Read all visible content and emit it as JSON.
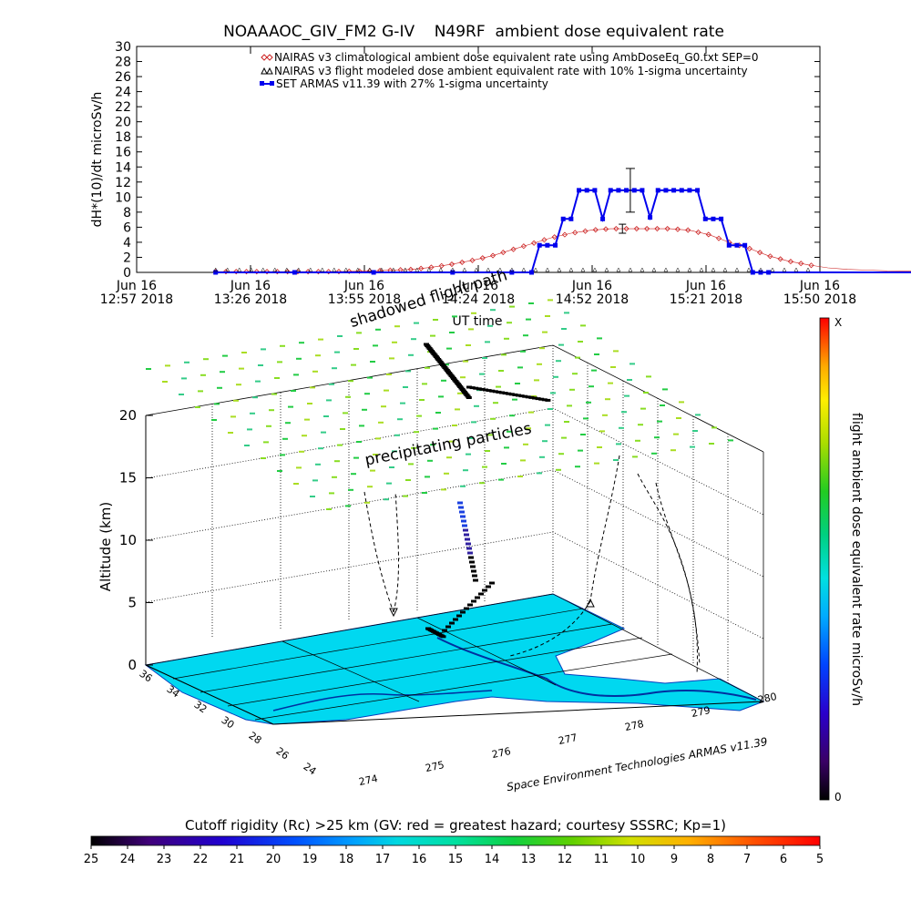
{
  "header": {
    "title": "NOAAAOC_GIV_FM2 G-IV    N49RF  ambient dose equivalent rate"
  },
  "chart_data": [
    {
      "type": "line",
      "title": "NOAAAOC_GIV_FM2 G-IV    N49RF  ambient dose equivalent rate",
      "xlabel": "UT time",
      "ylabel": "dH*(10)/dt microSv/h",
      "ylim": [
        0,
        30
      ],
      "yticks": [
        "0",
        "2",
        "4",
        "6",
        "8",
        "10",
        "12",
        "14",
        "16",
        "18",
        "20",
        "22",
        "24",
        "26",
        "28",
        "30"
      ],
      "xticks": [
        {
          "line1": "Jun 16",
          "line2": "12:57 2018"
        },
        {
          "line1": "Jun 16",
          "line2": "13:26 2018"
        },
        {
          "line1": "Jun 16",
          "line2": "13:55 2018"
        },
        {
          "line1": "Jun 16",
          "line2": "14:24 2018"
        },
        {
          "line1": "Jun 16",
          "line2": "14:52 2018"
        },
        {
          "line1": "Jun 16",
          "line2": "15:21 2018"
        },
        {
          "line1": "Jun 16",
          "line2": "15:50 2018"
        }
      ],
      "legend_position": "top-right",
      "series": [
        {
          "name": "NAIRAS v3 climatological ambient dose equivalent rate using AmbDoseEq_G0.txt SEP=0",
          "color": "#cc2222",
          "marker": "diamond",
          "x_minutes": [
            20,
            30,
            40,
            50,
            60,
            70,
            75,
            80,
            85,
            90,
            95,
            100,
            105,
            110,
            115,
            120,
            125,
            130,
            135,
            140,
            145,
            150,
            155,
            160,
            165,
            170,
            175,
            180,
            185,
            190,
            200,
            210,
            220,
            230,
            240,
            250,
            260,
            270,
            280
          ],
          "values": [
            0.1,
            0.1,
            0.1,
            0.1,
            0.2,
            0.4,
            0.7,
            1.1,
            1.6,
            2.2,
            3.0,
            3.8,
            4.6,
            5.2,
            5.6,
            5.8,
            5.8,
            5.8,
            5.8,
            5.6,
            5.0,
            4.0,
            3.2,
            2.2,
            1.5,
            1.0,
            0.6,
            0.4,
            0.3,
            0.2,
            0.15,
            0.1,
            0.1,
            0.1,
            0.1,
            0.1,
            0.1,
            0.1,
            0.1
          ]
        },
        {
          "name": "NAIRAS v3 flight modeled dose ambient equivalent rate with 10% 1-sigma uncertainty",
          "color": "#000000",
          "marker": "triangle",
          "x_minutes": [
            123
          ],
          "values": [
            5.8
          ],
          "error": [
            0.6
          ]
        },
        {
          "name": "SET ARMAS v11.39 with 27% 1-sigma uncertainty",
          "color": "#0000ee",
          "marker": "square",
          "x_minutes": [
            20,
            40,
            60,
            80,
            95,
            100,
            102,
            104,
            106,
            108,
            110,
            112,
            114,
            116,
            118,
            120,
            122,
            124,
            126,
            128,
            130,
            132,
            134,
            136,
            138,
            140,
            142,
            144,
            146,
            148,
            150,
            152,
            154,
            156,
            158,
            160,
            175,
            200,
            230,
            260,
            280
          ],
          "values": [
            0,
            0,
            0,
            0,
            0,
            0,
            3.6,
            3.6,
            3.6,
            7.1,
            7.1,
            10.9,
            10.9,
            10.9,
            7.1,
            10.9,
            10.9,
            10.9,
            10.9,
            10.9,
            7.3,
            10.9,
            10.9,
            10.9,
            10.9,
            10.9,
            10.9,
            7.1,
            7.1,
            7.1,
            3.6,
            3.6,
            3.6,
            0,
            0,
            0,
            0,
            0,
            0,
            0,
            0
          ],
          "error_bar": {
            "x_minutes": 125,
            "value": 10.9,
            "error": 2.9
          }
        }
      ]
    },
    {
      "type": "scatter",
      "subtype": "3d-trajectory",
      "zlabel": "Altitude (km)",
      "zticks": [
        "0",
        "5",
        "10",
        "15",
        "20"
      ],
      "lat_ticks": [
        "36",
        "34",
        "32",
        "30",
        "28",
        "26",
        "24"
      ],
      "lon_ticks": [
        "274",
        "275",
        "276",
        "277",
        "278",
        "279",
        "280"
      ],
      "annotations": [
        "shadowed flight path",
        "precipitating particles"
      ],
      "credit": "Space Environment Technologies ARMAS v11.39",
      "colorbar": {
        "title": "flight ambient dose equivalent rate microSv/h",
        "top_label": "X",
        "bottom_label": "0",
        "colors": [
          "#000000",
          "#3a0066",
          "#2a00cc",
          "#0044ff",
          "#00aaff",
          "#00e0e0",
          "#00d080",
          "#22cc22",
          "#aadd00",
          "#ffee00",
          "#ffaa00",
          "#ff5500",
          "#ff0000"
        ]
      }
    },
    {
      "type": "heatmap",
      "title": "Cutoff rigidity (Rc) >25 km (GV: red = greatest hazard; courtesy SSSRC; Kp=1)",
      "ticks": [
        "25",
        "24",
        "23",
        "22",
        "21",
        "20",
        "19",
        "18",
        "17",
        "16",
        "15",
        "14",
        "13",
        "12",
        "11",
        "10",
        "9",
        "8",
        "7",
        "6",
        "5"
      ],
      "colors": [
        "#000000",
        "#40007a",
        "#2000d0",
        "#0040ff",
        "#0090ff",
        "#00c8e8",
        "#00e0b0",
        "#00d860",
        "#22cc22",
        "#88d800",
        "#d8e000",
        "#ffc800",
        "#ff8000",
        "#ff3000",
        "#ff0000"
      ]
    }
  ]
}
